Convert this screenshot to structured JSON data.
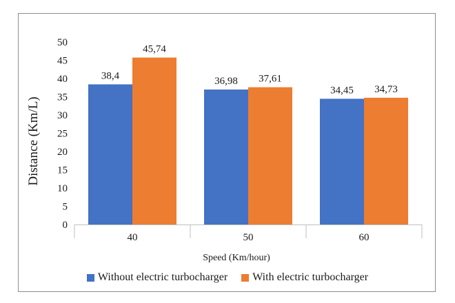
{
  "chart_data": {
    "type": "bar",
    "title": "",
    "xlabel": "Speed (Km/hour)",
    "ylabel": "Distance (Km/L)",
    "ylim": [
      0,
      50
    ],
    "ytick_step": 5,
    "categories": [
      "40",
      "50",
      "60"
    ],
    "series": [
      {
        "name": "Without electric turbocharger",
        "color": "#4472c4",
        "values": [
          38.4,
          36.98,
          34.45
        ],
        "labels": [
          "38,4",
          "36,98",
          "34,45"
        ]
      },
      {
        "name": "With electric turbocharger",
        "color": "#ed7d31",
        "values": [
          45.74,
          37.61,
          34.73
        ],
        "labels": [
          "45,74",
          "37,61",
          "34,73"
        ]
      }
    ],
    "grid": false,
    "legend_position": "bottom"
  }
}
